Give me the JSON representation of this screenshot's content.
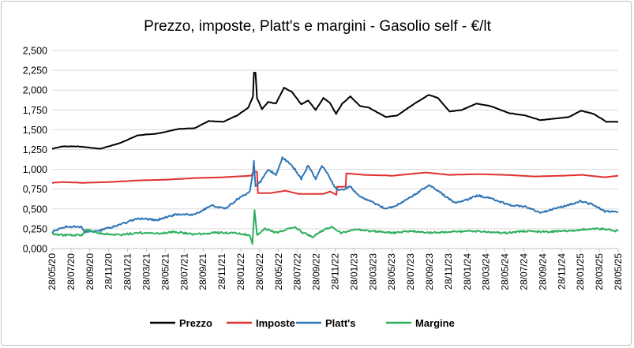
{
  "chart_data": {
    "type": "line",
    "title": "Prezzo, imposte, Platt's e margini - Gasolio self - €/lt",
    "xlabel": "",
    "ylabel": "",
    "ylim": [
      0,
      2.5
    ],
    "yticks": [
      0,
      0.25,
      0.5,
      0.75,
      1.0,
      1.25,
      1.5,
      1.75,
      2.0,
      2.25,
      2.5
    ],
    "ytick_labels": [
      "0,000",
      "0,250",
      "0,500",
      "0,750",
      "1,000",
      "1,250",
      "1,500",
      "1,750",
      "2,000",
      "2,250",
      "2,500"
    ],
    "xlim": [
      "2020-05-28",
      "2025-05-28"
    ],
    "xticks": [
      "28/05/20",
      "28/07/20",
      "28/09/20",
      "28/11/20",
      "28/01/21",
      "28/03/21",
      "28/05/21",
      "28/07/21",
      "28/09/21",
      "28/11/21",
      "28/01/22",
      "28/03/22",
      "28/05/22",
      "28/07/22",
      "28/09/22",
      "28/11/22",
      "28/01/23",
      "28/03/23",
      "28/05/23",
      "28/07/23",
      "28/09/23",
      "28/11/23",
      "28/01/24",
      "28/03/24",
      "28/05/24",
      "28/07/24",
      "28/09/24",
      "28/11/24",
      "28/01/25",
      "28/03/25",
      "28/05/25"
    ],
    "grid": "horizontal",
    "legend": "bottom",
    "series": [
      {
        "name": "Prezzo",
        "color": "#000000",
        "points": [
          [
            "2020-05-28",
            1.26
          ],
          [
            "2020-07-01",
            1.29
          ],
          [
            "2020-08-15",
            1.29
          ],
          [
            "2020-11-01",
            1.26
          ],
          [
            "2021-01-01",
            1.33
          ],
          [
            "2021-03-01",
            1.43
          ],
          [
            "2021-05-01",
            1.45
          ],
          [
            "2021-07-10",
            1.51
          ],
          [
            "2021-09-01",
            1.52
          ],
          [
            "2021-10-15",
            1.61
          ],
          [
            "2021-12-01",
            1.6
          ],
          [
            "2022-01-15",
            1.68
          ],
          [
            "2022-02-20",
            1.78
          ],
          [
            "2022-03-07",
            1.92
          ],
          [
            "2022-03-10",
            2.22
          ],
          [
            "2022-03-15",
            2.22
          ],
          [
            "2022-03-20",
            1.9
          ],
          [
            "2022-04-05",
            1.76
          ],
          [
            "2022-04-25",
            1.85
          ],
          [
            "2022-05-20",
            1.83
          ],
          [
            "2022-06-15",
            2.03
          ],
          [
            "2022-07-10",
            1.98
          ],
          [
            "2022-08-10",
            1.82
          ],
          [
            "2022-09-01",
            1.87
          ],
          [
            "2022-09-25",
            1.75
          ],
          [
            "2022-10-20",
            1.9
          ],
          [
            "2022-11-10",
            1.84
          ],
          [
            "2022-11-30",
            1.7
          ],
          [
            "2022-12-20",
            1.83
          ],
          [
            "2023-01-15",
            1.92
          ],
          [
            "2023-02-15",
            1.8
          ],
          [
            "2023-03-15",
            1.78
          ],
          [
            "2023-05-10",
            1.66
          ],
          [
            "2023-06-15",
            1.68
          ],
          [
            "2023-08-10",
            1.83
          ],
          [
            "2023-09-25",
            1.94
          ],
          [
            "2023-10-25",
            1.9
          ],
          [
            "2023-12-01",
            1.73
          ],
          [
            "2024-01-10",
            1.75
          ],
          [
            "2024-02-25",
            1.83
          ],
          [
            "2024-04-10",
            1.8
          ],
          [
            "2024-06-10",
            1.71
          ],
          [
            "2024-08-01",
            1.68
          ],
          [
            "2024-09-20",
            1.62
          ],
          [
            "2024-11-01",
            1.64
          ],
          [
            "2024-12-20",
            1.66
          ],
          [
            "2025-01-28",
            1.74
          ],
          [
            "2025-03-10",
            1.7
          ],
          [
            "2025-04-20",
            1.6
          ],
          [
            "2025-05-28",
            1.6
          ]
        ]
      },
      {
        "name": "Imposte",
        "color": "#e03030",
        "points": [
          [
            "2020-05-28",
            0.83
          ],
          [
            "2020-07-01",
            0.84
          ],
          [
            "2020-09-01",
            0.83
          ],
          [
            "2020-12-01",
            0.84
          ],
          [
            "2021-03-01",
            0.86
          ],
          [
            "2021-06-01",
            0.87
          ],
          [
            "2021-09-01",
            0.89
          ],
          [
            "2021-12-01",
            0.9
          ],
          [
            "2022-03-01",
            0.92
          ],
          [
            "2022-03-10",
            0.97
          ],
          [
            "2022-03-20",
            0.97
          ],
          [
            "2022-03-23",
            0.7
          ],
          [
            "2022-05-01",
            0.7
          ],
          [
            "2022-06-20",
            0.73
          ],
          [
            "2022-08-01",
            0.69
          ],
          [
            "2022-10-20",
            0.69
          ],
          [
            "2022-11-10",
            0.72
          ],
          [
            "2022-12-01",
            0.68
          ],
          [
            "2022-12-03",
            0.78
          ],
          [
            "2022-12-31",
            0.78
          ],
          [
            "2023-01-02",
            0.95
          ],
          [
            "2023-03-01",
            0.93
          ],
          [
            "2023-06-01",
            0.92
          ],
          [
            "2023-09-15",
            0.96
          ],
          [
            "2023-12-01",
            0.93
          ],
          [
            "2024-03-01",
            0.94
          ],
          [
            "2024-06-01",
            0.93
          ],
          [
            "2024-09-01",
            0.91
          ],
          [
            "2024-12-01",
            0.92
          ],
          [
            "2025-02-01",
            0.93
          ],
          [
            "2025-04-15",
            0.9
          ],
          [
            "2025-05-28",
            0.92
          ]
        ]
      },
      {
        "name": "Platt's",
        "color": "#2e75b6",
        "points": [
          [
            "2020-05-28",
            0.21
          ],
          [
            "2020-06-20",
            0.25
          ],
          [
            "2020-07-15",
            0.28
          ],
          [
            "2020-09-01",
            0.27
          ],
          [
            "2020-09-10",
            0.21
          ],
          [
            "2020-11-01",
            0.23
          ],
          [
            "2021-01-01",
            0.3
          ],
          [
            "2021-03-01",
            0.38
          ],
          [
            "2021-05-01",
            0.36
          ],
          [
            "2021-07-01",
            0.43
          ],
          [
            "2021-09-01",
            0.43
          ],
          [
            "2021-10-25",
            0.55
          ],
          [
            "2021-12-05",
            0.5
          ],
          [
            "2022-01-15",
            0.62
          ],
          [
            "2022-02-25",
            0.72
          ],
          [
            "2022-03-07",
            0.95
          ],
          [
            "2022-03-10",
            1.1
          ],
          [
            "2022-03-15",
            0.78
          ],
          [
            "2022-04-01",
            0.85
          ],
          [
            "2022-04-25",
            1.0
          ],
          [
            "2022-05-20",
            0.93
          ],
          [
            "2022-06-10",
            1.15
          ],
          [
            "2022-07-01",
            1.08
          ],
          [
            "2022-07-20",
            1.0
          ],
          [
            "2022-08-10",
            0.88
          ],
          [
            "2022-09-01",
            1.05
          ],
          [
            "2022-09-25",
            0.88
          ],
          [
            "2022-10-15",
            1.05
          ],
          [
            "2022-11-05",
            0.93
          ],
          [
            "2022-11-25",
            0.78
          ],
          [
            "2022-12-10",
            0.73
          ],
          [
            "2023-01-15",
            0.78
          ],
          [
            "2023-02-15",
            0.65
          ],
          [
            "2023-03-20",
            0.6
          ],
          [
            "2023-05-10",
            0.5
          ],
          [
            "2023-06-15",
            0.55
          ],
          [
            "2023-08-10",
            0.68
          ],
          [
            "2023-09-25",
            0.8
          ],
          [
            "2023-10-25",
            0.73
          ],
          [
            "2023-12-15",
            0.58
          ],
          [
            "2024-01-15",
            0.6
          ],
          [
            "2024-03-01",
            0.67
          ],
          [
            "2024-04-15",
            0.63
          ],
          [
            "2024-06-10",
            0.55
          ],
          [
            "2024-08-01",
            0.53
          ],
          [
            "2024-09-20",
            0.45
          ],
          [
            "2024-11-01",
            0.5
          ],
          [
            "2024-12-20",
            0.55
          ],
          [
            "2025-01-28",
            0.6
          ],
          [
            "2025-03-10",
            0.55
          ],
          [
            "2025-04-15",
            0.47
          ],
          [
            "2025-05-28",
            0.46
          ]
        ]
      },
      {
        "name": "Margine",
        "color": "#2eaf5d",
        "points": [
          [
            "2020-05-28",
            0.19
          ],
          [
            "2020-06-20",
            0.17
          ],
          [
            "2020-09-01",
            0.17
          ],
          [
            "2020-09-15",
            0.24
          ],
          [
            "2020-11-01",
            0.19
          ],
          [
            "2021-01-01",
            0.17
          ],
          [
            "2021-03-01",
            0.2
          ],
          [
            "2021-05-01",
            0.19
          ],
          [
            "2021-07-01",
            0.21
          ],
          [
            "2021-09-01",
            0.18
          ],
          [
            "2021-11-01",
            0.2
          ],
          [
            "2022-01-01",
            0.2
          ],
          [
            "2022-02-25",
            0.17
          ],
          [
            "2022-03-05",
            0.05
          ],
          [
            "2022-03-12",
            0.48
          ],
          [
            "2022-03-20",
            0.17
          ],
          [
            "2022-04-15",
            0.25
          ],
          [
            "2022-05-20",
            0.2
          ],
          [
            "2022-06-20",
            0.24
          ],
          [
            "2022-07-20",
            0.27
          ],
          [
            "2022-08-15",
            0.2
          ],
          [
            "2022-09-15",
            0.15
          ],
          [
            "2022-10-15",
            0.22
          ],
          [
            "2022-11-15",
            0.28
          ],
          [
            "2022-12-15",
            0.2
          ],
          [
            "2023-02-01",
            0.24
          ],
          [
            "2023-04-01",
            0.22
          ],
          [
            "2023-06-01",
            0.2
          ],
          [
            "2023-08-01",
            0.22
          ],
          [
            "2023-10-01",
            0.2
          ],
          [
            "2023-12-01",
            0.21
          ],
          [
            "2024-02-01",
            0.22
          ],
          [
            "2024-04-01",
            0.21
          ],
          [
            "2024-06-01",
            0.2
          ],
          [
            "2024-08-01",
            0.22
          ],
          [
            "2024-10-01",
            0.21
          ],
          [
            "2024-12-01",
            0.22
          ],
          [
            "2025-02-01",
            0.24
          ],
          [
            "2025-04-01",
            0.25
          ],
          [
            "2025-05-28",
            0.22
          ]
        ]
      }
    ]
  }
}
